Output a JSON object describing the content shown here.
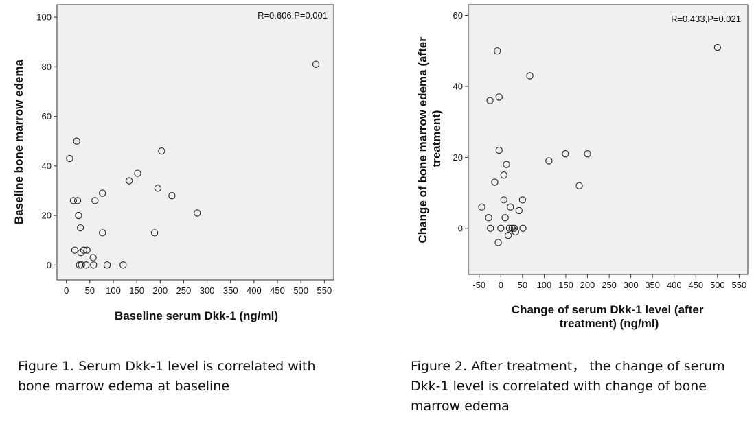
{
  "chart_data": [
    {
      "type": "scatter",
      "title": "",
      "xlabel": "Baseline serum Dkk-1 (ng/ml)",
      "ylabel": "Baseline bone marrow edema",
      "annotation": "R=0.606,P=0.001",
      "xlim": [
        -20,
        570
      ],
      "ylim": [
        -6,
        105
      ],
      "x_ticks": [
        0,
        50,
        100,
        150,
        200,
        250,
        300,
        350,
        400,
        450,
        500,
        550
      ],
      "y_ticks": [
        0,
        20,
        40,
        60,
        80,
        100
      ],
      "points": [
        {
          "x": 532,
          "y": 81
        },
        {
          "x": 22,
          "y": 50
        },
        {
          "x": 203,
          "y": 46
        },
        {
          "x": 7,
          "y": 43
        },
        {
          "x": 152,
          "y": 37
        },
        {
          "x": 134,
          "y": 34
        },
        {
          "x": 195,
          "y": 31
        },
        {
          "x": 77,
          "y": 29
        },
        {
          "x": 225,
          "y": 28
        },
        {
          "x": 15,
          "y": 26
        },
        {
          "x": 24,
          "y": 26
        },
        {
          "x": 61,
          "y": 26
        },
        {
          "x": 279,
          "y": 21
        },
        {
          "x": 26,
          "y": 20
        },
        {
          "x": 30,
          "y": 15
        },
        {
          "x": 77,
          "y": 13
        },
        {
          "x": 188,
          "y": 13
        },
        {
          "x": 18,
          "y": 6
        },
        {
          "x": 37,
          "y": 6
        },
        {
          "x": 44,
          "y": 6
        },
        {
          "x": 31,
          "y": 5
        },
        {
          "x": 57,
          "y": 3
        },
        {
          "x": 28,
          "y": 0
        },
        {
          "x": 32,
          "y": 0
        },
        {
          "x": 42,
          "y": 0
        },
        {
          "x": 58,
          "y": 0
        },
        {
          "x": 87,
          "y": 0
        },
        {
          "x": 121,
          "y": 0
        }
      ]
    },
    {
      "type": "scatter",
      "title": "",
      "xlabel": "Change of serum Dkk-1 level (after treatment) (ng/ml)",
      "ylabel": "Change of bone marrow edema (after treatment)",
      "annotation": "R=0.433,P=0.021",
      "xlim": [
        -75,
        570
      ],
      "ylim": [
        -13,
        63
      ],
      "x_ticks": [
        -50,
        0,
        50,
        100,
        150,
        200,
        250,
        300,
        350,
        400,
        450,
        500,
        550
      ],
      "y_ticks": [
        0,
        20,
        40,
        60
      ],
      "points": [
        {
          "x": 500,
          "y": 51
        },
        {
          "x": -8,
          "y": 50
        },
        {
          "x": 67,
          "y": 43
        },
        {
          "x": -4,
          "y": 37
        },
        {
          "x": -25,
          "y": 36
        },
        {
          "x": -4,
          "y": 22
        },
        {
          "x": 149,
          "y": 21
        },
        {
          "x": 200,
          "y": 21
        },
        {
          "x": 111,
          "y": 19
        },
        {
          "x": 13,
          "y": 18
        },
        {
          "x": 7,
          "y": 15
        },
        {
          "x": -14,
          "y": 13
        },
        {
          "x": 181,
          "y": 12
        },
        {
          "x": 7,
          "y": 8
        },
        {
          "x": 50,
          "y": 8
        },
        {
          "x": -44,
          "y": 6
        },
        {
          "x": 22,
          "y": 6
        },
        {
          "x": 42,
          "y": 5
        },
        {
          "x": -28,
          "y": 3
        },
        {
          "x": 10,
          "y": 3
        },
        {
          "x": -24,
          "y": 0
        },
        {
          "x": 0,
          "y": 0
        },
        {
          "x": 20,
          "y": 0
        },
        {
          "x": 26,
          "y": 0
        },
        {
          "x": 31,
          "y": 0
        },
        {
          "x": 51,
          "y": 0
        },
        {
          "x": 34,
          "y": -1
        },
        {
          "x": 17,
          "y": -2
        },
        {
          "x": -6,
          "y": -4
        }
      ]
    }
  ],
  "captions": {
    "figure1": "Figure 1. Serum Dkk-1 level is correlated with bone marrow edema at baseline",
    "figure2": "Figure 2. After treatment， the change of serum Dkk-1 level is correlated with change of bone marrow edema"
  }
}
